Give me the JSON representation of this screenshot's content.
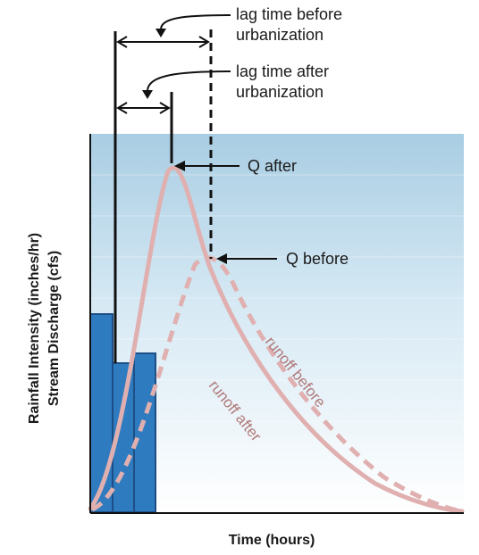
{
  "diagram": {
    "labels": {
      "lag_before": [
        "lag time before",
        "urbanization"
      ],
      "lag_after": [
        "lag time after",
        "urbanization"
      ],
      "q_after": "Q after",
      "q_before": "Q before",
      "runoff_before": "runoff before",
      "runoff_after": "runoff after"
    },
    "axes": {
      "y_title_line1": "Rainfall Intensity (inches/hr)",
      "y_title_line2": "Stream Discharge (cfs)",
      "x_title": "Time (hours)"
    },
    "colors": {
      "rain_bar": "#2f7bbf",
      "rain_bar_border": "#1d4f86",
      "curve": "#e0b0b0",
      "curve_label": "#b07a7a",
      "sky_top": "#a9cde3",
      "sky_bottom": "#ffffff",
      "axis": "#111111"
    }
  }
}
